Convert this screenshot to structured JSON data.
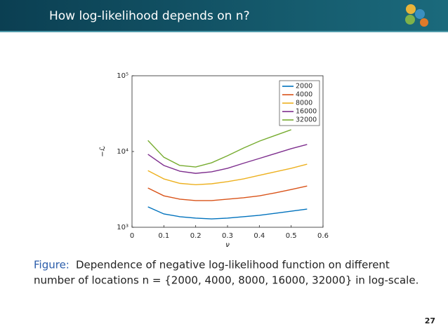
{
  "slide_title": "How log-likelihood depends on n?",
  "caption_label": "Figure:",
  "caption_lines": [
    "Dependence of negative log-likelihood function on different",
    "number of locations n = {2000, 4000, 8000, 16000, 32000} in log-scale."
  ],
  "page_number": "27",
  "chart_data": {
    "type": "line",
    "x_label": "ν",
    "y_label": "−ℒ",
    "x": [
      0.05,
      0.1,
      0.15,
      0.2,
      0.25,
      0.3,
      0.35,
      0.4,
      0.45,
      0.5,
      0.55
    ],
    "series": [
      {
        "name": "2000",
        "color": "#0072bd",
        "values": [
          1860,
          1500,
          1380,
          1320,
          1290,
          1320,
          1380,
          1440,
          1530,
          1630,
          1740
        ]
      },
      {
        "name": "4000",
        "color": "#d95319",
        "values": [
          3300,
          2600,
          2350,
          2250,
          2250,
          2350,
          2450,
          2600,
          2850,
          3150,
          3500
        ]
      },
      {
        "name": "8000",
        "color": "#edb120",
        "values": [
          5600,
          4350,
          3800,
          3650,
          3750,
          4000,
          4350,
          4850,
          5400,
          6000,
          6800
        ]
      },
      {
        "name": "16000",
        "color": "#7e2f8e",
        "values": [
          9200,
          6550,
          5500,
          5150,
          5400,
          6000,
          7000,
          8100,
          9400,
          10900,
          12400
        ]
      },
      {
        "name": "32000",
        "color": "#77ac30",
        "values": [
          14000,
          8400,
          6550,
          6250,
          7100,
          8800,
          11100,
          13700,
          16300,
          19400,
          null
        ]
      }
    ],
    "xlim": [
      0,
      0.6
    ],
    "xticks": [
      0,
      0.1,
      0.2,
      0.3,
      0.4,
      0.5,
      0.6
    ],
    "ylim": [
      1000,
      100000
    ],
    "log_y": true,
    "yticks": [
      {
        "value": 1000,
        "label": "10³"
      },
      {
        "value": 10000,
        "label": "10⁴"
      },
      {
        "value": 100000,
        "label": "10⁵"
      }
    ],
    "legend": "upper right",
    "grid": false
  }
}
